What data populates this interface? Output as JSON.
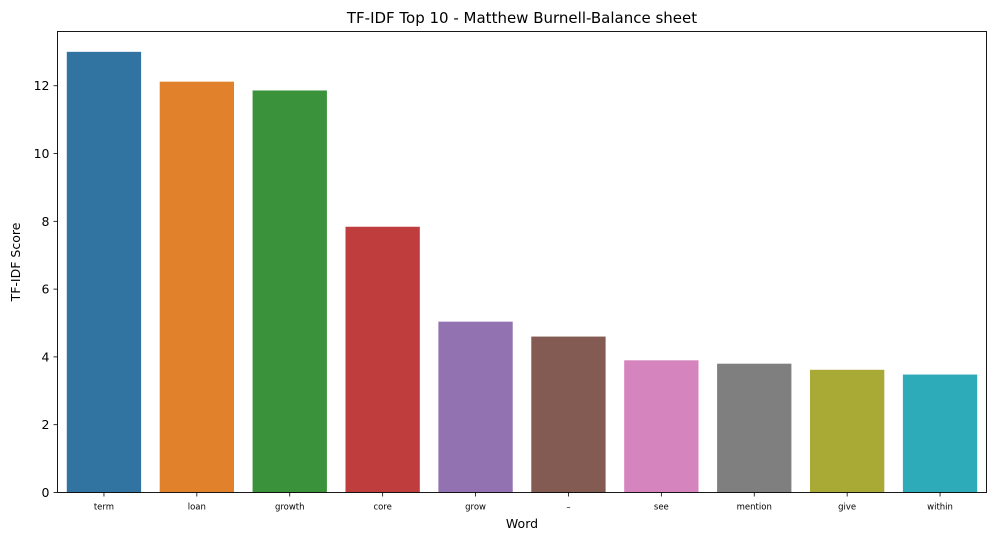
{
  "chart_data": {
    "type": "bar",
    "title": "TF-IDF Top 10 - Matthew Burnell-Balance sheet",
    "xlabel": "Word",
    "ylabel": "TF-IDF Score",
    "categories": [
      "term",
      "loan",
      "growth",
      "core",
      "grow",
      "–",
      "see",
      "mention",
      "give",
      "within"
    ],
    "values": [
      13.0,
      12.12,
      11.86,
      7.84,
      5.04,
      4.6,
      3.9,
      3.8,
      3.62,
      3.48
    ],
    "colors": [
      "#3274a1",
      "#e1812c",
      "#3a923a",
      "#c03d3e",
      "#9372b2",
      "#845b53",
      "#d684bd",
      "#7f7f7f",
      "#a9aa35",
      "#2eabb8"
    ],
    "ylim": [
      0,
      13.6
    ],
    "yticks": [
      "0",
      "2",
      "4",
      "6",
      "8",
      "10",
      "12"
    ],
    "grid": false,
    "legend": "none"
  }
}
